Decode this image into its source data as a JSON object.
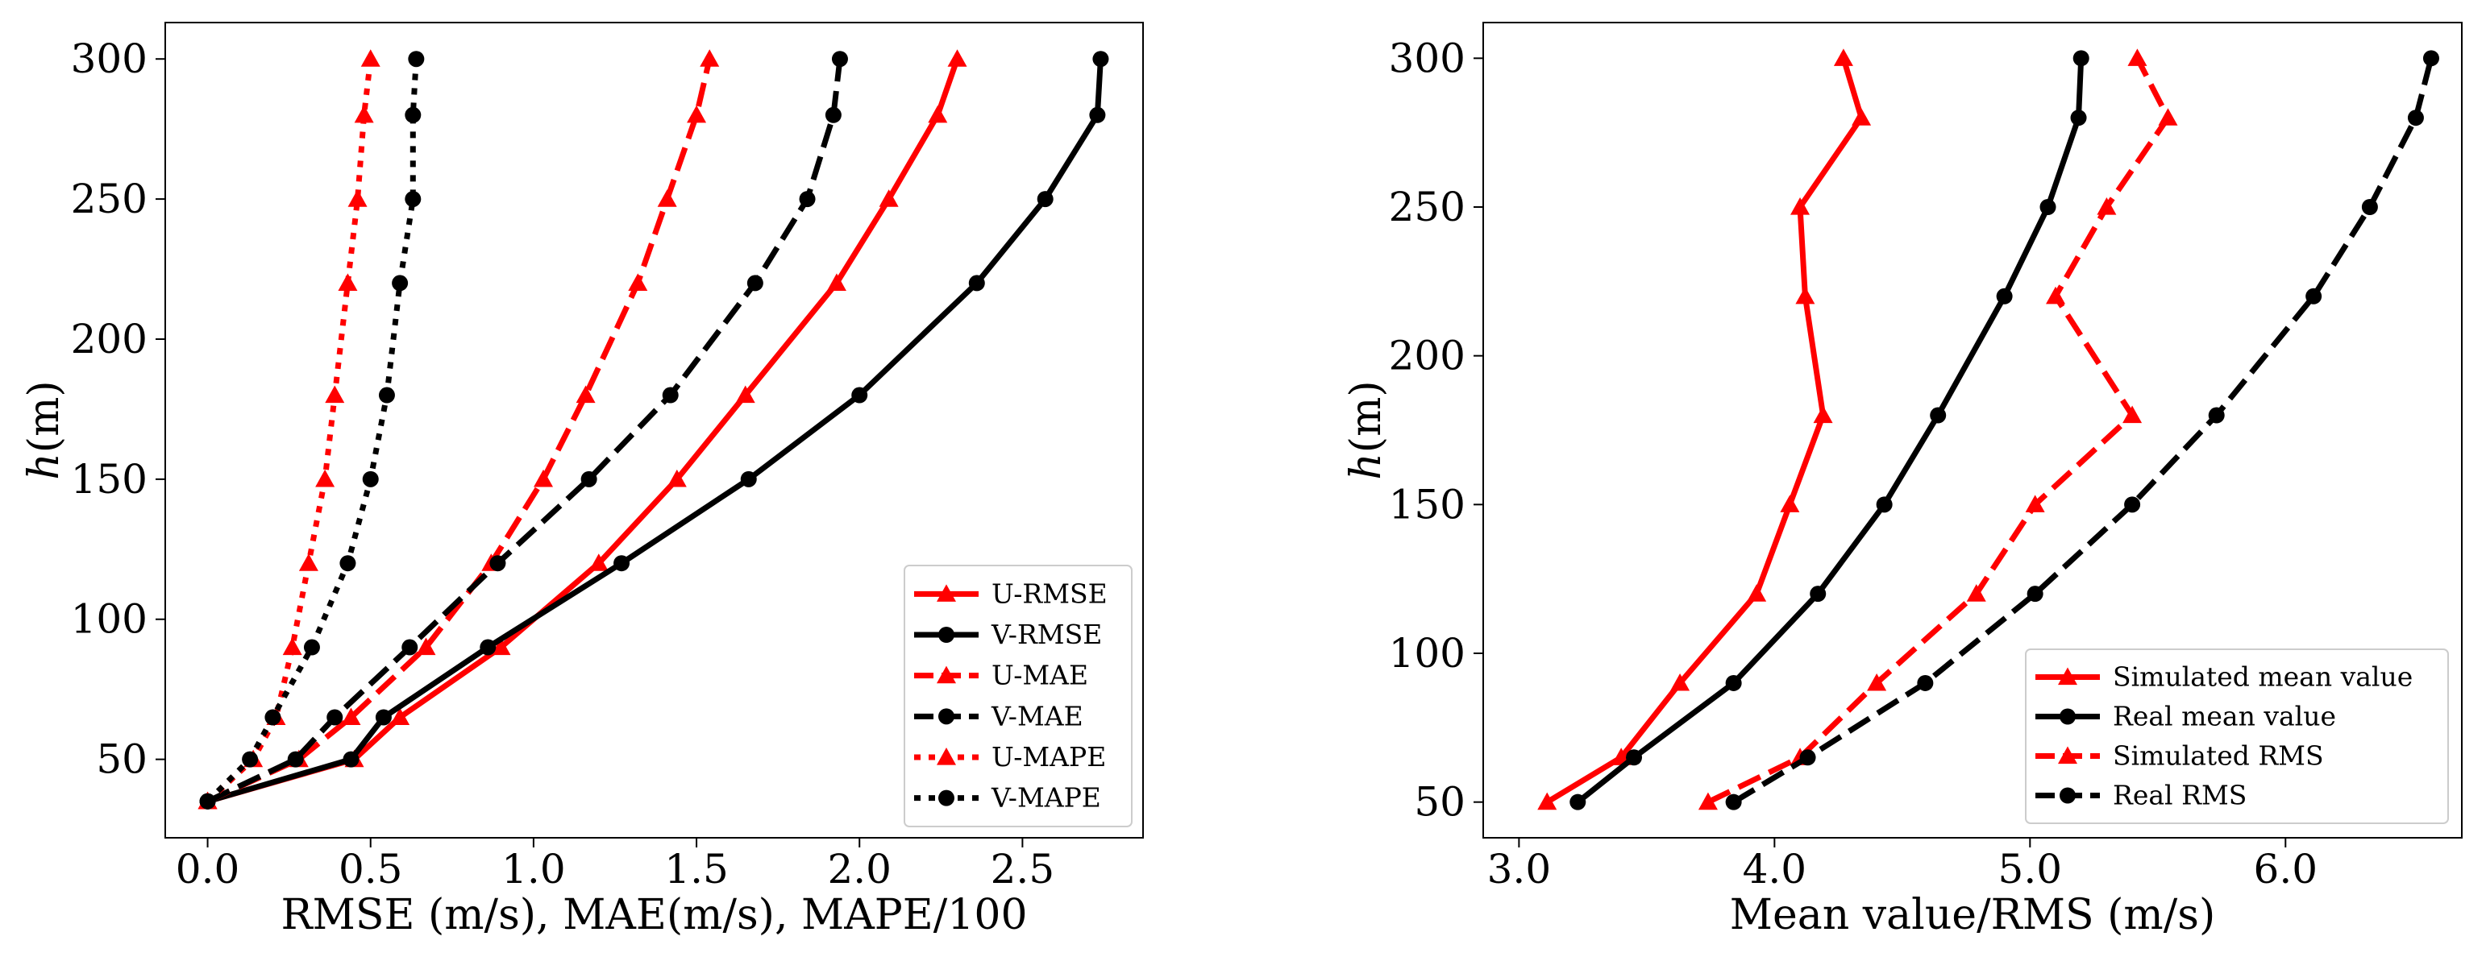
{
  "chart_data": [
    {
      "type": "line",
      "xlabel": "RMSE (m/s), MAE(m/s), MAPE/100",
      "ylabel_italic": "h",
      "ylabel_rest": "(m)",
      "xlim": [
        -0.13,
        2.87
      ],
      "ylim": [
        22,
        313
      ],
      "xticks": [
        0.0,
        0.5,
        1.0,
        1.5,
        2.0,
        2.5
      ],
      "xtick_labels": [
        "0.0",
        "0.5",
        "1.0",
        "1.5",
        "2.0",
        "2.5"
      ],
      "yticks": [
        50,
        100,
        150,
        200,
        250,
        300
      ],
      "ytick_labels": [
        "50",
        "100",
        "150",
        "200",
        "250",
        "300"
      ],
      "legend_position": "bottom-right",
      "series": [
        {
          "name": "U-RMSE",
          "color": "#ff0000",
          "dash": "solid",
          "marker": "triangle",
          "x": [
            0.0,
            0.45,
            0.59,
            0.9,
            1.2,
            1.44,
            1.65,
            1.93,
            2.09,
            2.24,
            2.3
          ],
          "y": [
            35,
            50,
            65,
            90,
            120,
            150,
            180,
            220,
            250,
            280,
            300
          ]
        },
        {
          "name": "V-RMSE",
          "color": "#000000",
          "dash": "solid",
          "marker": "circle",
          "x": [
            0.0,
            0.44,
            0.54,
            0.86,
            1.27,
            1.66,
            2.0,
            2.36,
            2.57,
            2.73,
            2.74
          ],
          "y": [
            35,
            50,
            65,
            90,
            120,
            150,
            180,
            220,
            250,
            280,
            300
          ]
        },
        {
          "name": "U-MAE",
          "color": "#ff0000",
          "dash": "dashed",
          "marker": "triangle",
          "x": [
            0.0,
            0.28,
            0.44,
            0.67,
            0.87,
            1.03,
            1.16,
            1.32,
            1.41,
            1.5,
            1.54
          ],
          "y": [
            35,
            50,
            65,
            90,
            120,
            150,
            180,
            220,
            250,
            280,
            300
          ]
        },
        {
          "name": "V-MAE",
          "color": "#000000",
          "dash": "dashed",
          "marker": "circle",
          "x": [
            0.0,
            0.27,
            0.39,
            0.62,
            0.89,
            1.17,
            1.42,
            1.68,
            1.84,
            1.92,
            1.94
          ],
          "y": [
            35,
            50,
            65,
            90,
            120,
            150,
            180,
            220,
            250,
            280,
            300
          ]
        },
        {
          "name": "U-MAPE",
          "color": "#ff0000",
          "dash": "dotted",
          "marker": "triangle",
          "x": [
            0.0,
            0.14,
            0.21,
            0.26,
            0.31,
            0.36,
            0.39,
            0.43,
            0.46,
            0.48,
            0.5
          ],
          "y": [
            35,
            50,
            65,
            90,
            120,
            150,
            180,
            220,
            250,
            280,
            300
          ]
        },
        {
          "name": "V-MAPE",
          "color": "#000000",
          "dash": "dotted",
          "marker": "circle",
          "x": [
            0.0,
            0.13,
            0.2,
            0.32,
            0.43,
            0.5,
            0.55,
            0.59,
            0.63,
            0.63,
            0.64
          ],
          "y": [
            35,
            50,
            65,
            90,
            120,
            150,
            180,
            220,
            250,
            280,
            300
          ]
        }
      ]
    },
    {
      "type": "line",
      "xlabel": "Mean value/RMS (m/s)",
      "ylabel_italic": "h",
      "ylabel_rest": "(m)",
      "xlim": [
        2.86,
        6.69
      ],
      "ylim": [
        38,
        312
      ],
      "xticks": [
        3.0,
        4.0,
        5.0,
        6.0
      ],
      "xtick_labels": [
        "3.0",
        "4.0",
        "5.0",
        "6.0"
      ],
      "yticks": [
        50,
        100,
        150,
        200,
        250,
        300
      ],
      "ytick_labels": [
        "50",
        "100",
        "150",
        "200",
        "250",
        "300"
      ],
      "legend_position": "bottom-right",
      "series": [
        {
          "name": "Simulated mean value",
          "color": "#ff0000",
          "dash": "solid",
          "marker": "triangle",
          "x": [
            3.11,
            3.4,
            3.63,
            3.93,
            4.06,
            4.19,
            4.12,
            4.1,
            4.34,
            4.27
          ],
          "y": [
            50,
            65,
            90,
            120,
            150,
            180,
            220,
            250,
            280,
            300
          ]
        },
        {
          "name": "Real mean value",
          "color": "#000000",
          "dash": "solid",
          "marker": "circle",
          "x": [
            3.23,
            3.45,
            3.84,
            4.17,
            4.43,
            4.64,
            4.9,
            5.07,
            5.19,
            5.2
          ],
          "y": [
            50,
            65,
            90,
            120,
            150,
            180,
            220,
            250,
            280,
            300
          ]
        },
        {
          "name": "Simulated RMS",
          "color": "#ff0000",
          "dash": "dashed",
          "marker": "triangle",
          "x": [
            3.74,
            4.1,
            4.4,
            4.79,
            5.02,
            5.4,
            5.1,
            5.3,
            5.54,
            5.42
          ],
          "y": [
            50,
            65,
            90,
            120,
            150,
            180,
            220,
            250,
            280,
            300
          ]
        },
        {
          "name": "Real RMS",
          "color": "#000000",
          "dash": "dashed",
          "marker": "circle",
          "x": [
            3.84,
            4.13,
            4.59,
            5.02,
            5.4,
            5.73,
            6.11,
            6.33,
            6.51,
            6.57
          ],
          "y": [
            50,
            65,
            90,
            120,
            150,
            180,
            220,
            250,
            280,
            300
          ]
        }
      ]
    }
  ]
}
